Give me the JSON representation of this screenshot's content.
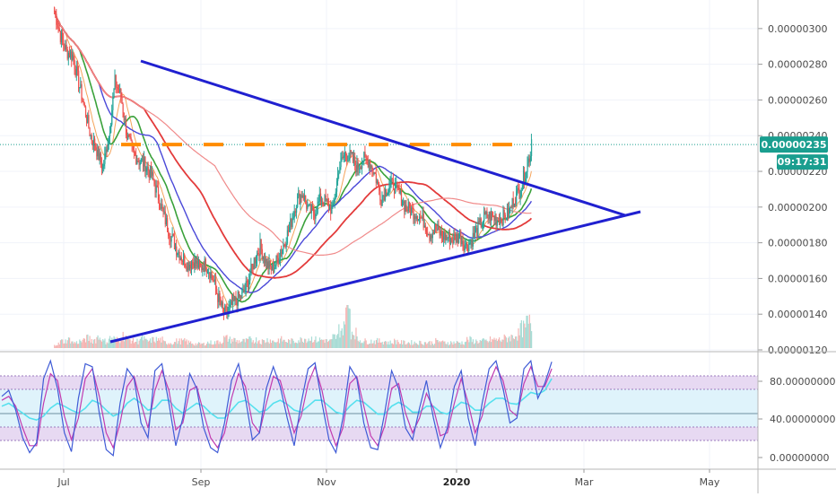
{
  "chart_data": {
    "type": "candlestick",
    "price_axis": {
      "ticks": [
        "0.00000300",
        "0.00000280",
        "0.00000260",
        "0.00000240",
        "0.00000220",
        "0.00000200",
        "0.00000180",
        "0.00000160",
        "0.00000140",
        "0.00000120"
      ],
      "range": [
        1.2e-06,
        3.16e-06
      ]
    },
    "time_axis": {
      "ticks": [
        {
          "label": "Jul",
          "bold": false
        },
        {
          "label": "Sep",
          "bold": false
        },
        {
          "label": "Nov",
          "bold": false
        },
        {
          "label": "2020",
          "bold": true
        },
        {
          "label": "Mar",
          "bold": false
        },
        {
          "label": "May",
          "bold": false
        }
      ]
    },
    "last_price": {
      "value": "0.00000235",
      "countdown": "09:17:31"
    },
    "resistance_level": 2.35e-06,
    "triangle": {
      "upper_line": [
        [
          2.78e-06,
          "2019-07-20"
        ],
        [
          1.93e-06,
          "2020-02-10"
        ]
      ],
      "lower_line": [
        [
          1.23e-06,
          "2019-07-12"
        ],
        [
          1.94e-06,
          "2020-02-12"
        ]
      ]
    },
    "close_path": [
      3.1e-06,
      2.96e-06,
      2.87e-06,
      2.85e-06,
      2.7e-06,
      2.55e-06,
      2.4e-06,
      2.32e-06,
      2.22e-06,
      2.4e-06,
      2.7e-06,
      2.62e-06,
      2.4e-06,
      2.3e-06,
      2.26e-06,
      2.24e-06,
      2.18e-06,
      2.08e-06,
      1.96e-06,
      1.86e-06,
      1.78e-06,
      1.72e-06,
      1.68e-06,
      1.7e-06,
      1.66e-06,
      1.68e-06,
      1.62e-06,
      1.5e-06,
      1.4e-06,
      1.43e-06,
      1.48e-06,
      1.5e-06,
      1.58e-06,
      1.7e-06,
      1.78e-06,
      1.68e-06,
      1.65e-06,
      1.72e-06,
      1.8e-06,
      1.9e-06,
      2.03e-06,
      2.08e-06,
      1.98e-06,
      1.97e-06,
      2.05e-06,
      2.02e-06,
      1.98e-06,
      2.22e-06,
      2.3e-06,
      2.28e-06,
      2.22e-06,
      2.27e-06,
      2.26e-06,
      2.18e-06,
      2.05e-06,
      2.11e-06,
      2.13e-06,
      2.07e-06,
      2e-06,
      1.98e-06,
      1.96e-06,
      1.92e-06,
      1.85e-06,
      1.88e-06,
      1.84e-06,
      1.83e-06,
      1.82e-06,
      1.84e-06,
      1.78e-06,
      1.82e-06,
      1.88e-06,
      1.94e-06,
      1.95e-06,
      1.93e-06,
      1.94e-06,
      1.96e-06,
      2.05e-06,
      2.1e-06,
      2.22e-06,
      2.35e-06
    ],
    "volume_profile": [
      3,
      5,
      6,
      4,
      5,
      7,
      6,
      8,
      5,
      7,
      6,
      9,
      6,
      5,
      7,
      5,
      6,
      6,
      4,
      4,
      5,
      5,
      4,
      3,
      3,
      4,
      4,
      5,
      7,
      6,
      5,
      5,
      6,
      6,
      5,
      6,
      5,
      6,
      5,
      5,
      6,
      7,
      7,
      6,
      6,
      5,
      8,
      14,
      30,
      12,
      6,
      5,
      5,
      5,
      5,
      4,
      5,
      4,
      4,
      4,
      4,
      4,
      4,
      5,
      4,
      4,
      4,
      4,
      6,
      5,
      5,
      5,
      6,
      6,
      7,
      8,
      10,
      14,
      18,
      16
    ],
    "oscillator": {
      "ticks": [
        "80.00000000",
        "40.00000000",
        "0.00000000"
      ],
      "range": [
        0,
        100
      ],
      "upper_band": 80,
      "middle_band": 50,
      "lower_band": 20,
      "k_values": [
        62,
        68,
        48,
        20,
        5,
        15,
        80,
        98,
        70,
        25,
        6,
        60,
        95,
        92,
        45,
        8,
        2,
        55,
        90,
        80,
        35,
        20,
        88,
        95,
        55,
        12,
        40,
        85,
        70,
        30,
        10,
        5,
        35,
        78,
        95,
        60,
        18,
        25,
        70,
        92,
        72,
        40,
        12,
        55,
        90,
        96,
        55,
        18,
        5,
        40,
        92,
        80,
        35,
        10,
        8,
        45,
        88,
        70,
        30,
        18,
        50,
        78,
        40,
        10,
        30,
        72,
        88,
        40,
        12,
        55,
        90,
        98,
        70,
        35,
        40,
        90,
        98,
        60,
        75,
        97
      ],
      "d_values": [
        58,
        62,
        52,
        30,
        12,
        12,
        55,
        85,
        78,
        42,
        18,
        40,
        80,
        90,
        62,
        25,
        10,
        35,
        72,
        82,
        55,
        30,
        68,
        88,
        68,
        28,
        35,
        68,
        72,
        45,
        20,
        10,
        25,
        60,
        85,
        72,
        35,
        25,
        55,
        82,
        78,
        52,
        25,
        42,
        75,
        92,
        68,
        32,
        12,
        30,
        75,
        82,
        52,
        22,
        12,
        32,
        70,
        75,
        45,
        25,
        40,
        65,
        50,
        22,
        25,
        55,
        80,
        55,
        25,
        42,
        75,
        92,
        78,
        48,
        42,
        75,
        92,
        72,
        72,
        90
      ],
      "third_values": [
        52,
        55,
        50,
        45,
        40,
        38,
        42,
        50,
        55,
        52,
        48,
        45,
        50,
        58,
        55,
        48,
        42,
        45,
        55,
        60,
        55,
        48,
        50,
        58,
        58,
        50,
        45,
        50,
        55,
        52,
        45,
        40,
        40,
        48,
        56,
        58,
        52,
        46,
        48,
        55,
        58,
        54,
        48,
        46,
        52,
        58,
        58,
        52,
        46,
        44,
        52,
        58,
        56,
        50,
        44,
        44,
        52,
        56,
        52,
        46,
        46,
        52,
        52,
        46,
        44,
        50,
        56,
        54,
        48,
        48,
        55,
        60,
        60,
        55,
        54,
        60,
        66,
        64,
        68,
        80
      ]
    }
  },
  "colors": {
    "bull": "#26a69a",
    "bear": "#ef5350",
    "triangle": "#2020d0",
    "resistance": "#ff8c00",
    "price_line": "#1a9e8f",
    "ma_green": "#3aa13a",
    "ma_red": "#e33b3b",
    "ma_pink": "#f08a8a",
    "ma_blue": "#4a48d8",
    "ma_orange": "#f5a35a",
    "osc_k": "#3f5bd6",
    "osc_d": "#c23bb0",
    "osc_third": "#55e0ee",
    "osc_band_fill": "#e7d9f2",
    "osc_mid_fill": "#dff3fb"
  }
}
